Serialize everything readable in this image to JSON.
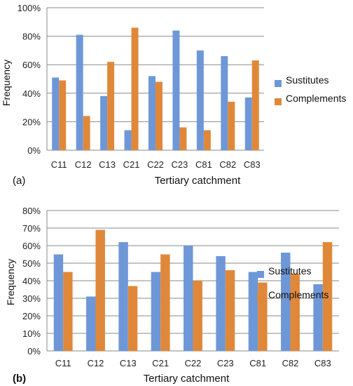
{
  "chart_data": [
    {
      "type": "bar",
      "panel_label": "(a)",
      "categories": [
        "C11",
        "C12",
        "C13",
        "C21",
        "C22",
        "C23",
        "C81",
        "C82",
        "C83"
      ],
      "series": [
        {
          "name": "Sustitutes",
          "color": "#6e97d8",
          "values": [
            51,
            81,
            38,
            14,
            52,
            84,
            70,
            66,
            37
          ]
        },
        {
          "name": "Complements",
          "color": "#e0883a",
          "values": [
            49,
            24,
            62,
            86,
            48,
            16,
            14,
            34,
            63
          ]
        }
      ],
      "xlabel": "Tertiary catchment",
      "ylabel": "Frequency",
      "ylim": [
        0,
        100
      ],
      "yticks": [
        "0%",
        "20%",
        "40%",
        "60%",
        "80%",
        "100%"
      ],
      "grid": true,
      "legend": "right"
    },
    {
      "type": "bar",
      "panel_label": "(b)",
      "categories": [
        "C11",
        "C12",
        "C13",
        "C21",
        "C22",
        "C23",
        "C81",
        "C82",
        "C83"
      ],
      "series": [
        {
          "name": "Sustitutes",
          "color": "#6e97d8",
          "values": [
            55,
            31,
            62,
            45,
            60,
            54,
            45,
            56,
            38
          ]
        },
        {
          "name": "Complements",
          "color": "#e0883a",
          "values": [
            45,
            69,
            37,
            55,
            40,
            46,
            39,
            44,
            62
          ]
        }
      ],
      "xlabel": "Tertiary catchment",
      "ylabel": "Frequency",
      "ylim": [
        0,
        80
      ],
      "yticks": [
        "0%",
        "10%",
        "20%",
        "30%",
        "40%",
        "50%",
        "60%",
        "70%",
        "80%"
      ],
      "grid": true,
      "legend": "right"
    }
  ]
}
